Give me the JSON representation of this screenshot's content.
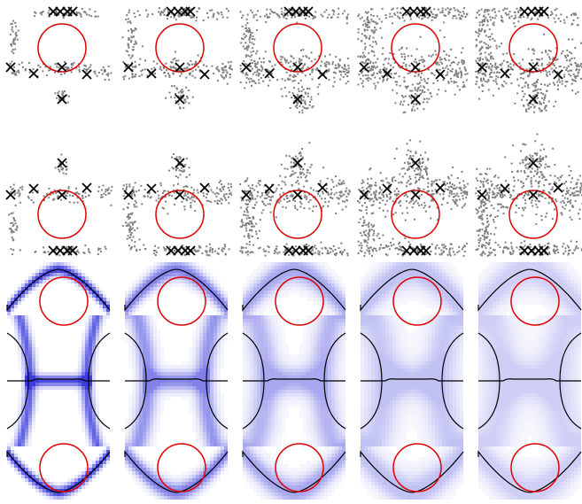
{
  "figure": {
    "background": "#ffffff",
    "circle_color": "#e00000",
    "point_color": "#808080",
    "marker_color": "#000000",
    "density_color": "#1a1ad6",
    "curve_color": "#000000",
    "marker_glyph": "x-marker",
    "columns": 5,
    "rows": [
      "scatter-circle-top",
      "scatter-circle-bottom",
      "density-heatmap"
    ],
    "spread_levels": [
      0.12,
      0.35,
      0.6,
      0.85,
      1.0
    ],
    "density_intensity": [
      1.0,
      0.65,
      0.45,
      0.32,
      0.25
    ]
  }
}
